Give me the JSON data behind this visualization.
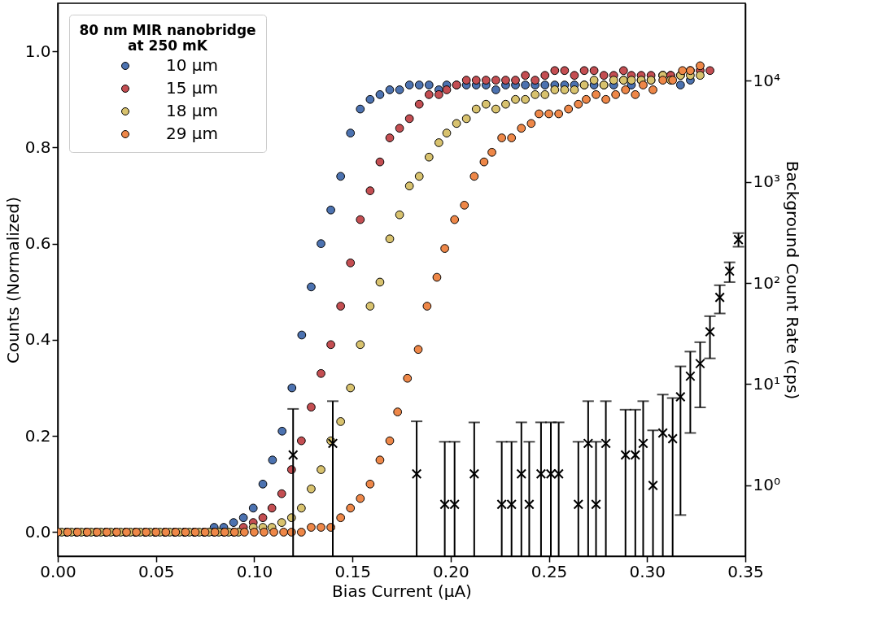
{
  "chart_data": {
    "type": "scatter",
    "xlabel": "Bias Current (μA)",
    "ylabel": "Counts (Normalized)",
    "y2label": "Background Count Rate (cps)",
    "legend_title": "80 nm MIR nanobridge\nat 250 mK",
    "legend": "top left",
    "marker": "circle",
    "grid": false,
    "log": "y2",
    "xlim": [
      0,
      0.35
    ],
    "xticks": [
      {
        "value": 0,
        "label": "0.00"
      },
      0.05,
      {
        "value": 0.1,
        "label": "0.10"
      },
      0.15,
      {
        "value": 0.2,
        "label": "0.20"
      },
      0.25,
      {
        "value": 0.3,
        "label": "0.30"
      },
      0.35
    ],
    "ylim": [
      -0.05,
      1.1
    ],
    "yticks": [
      {
        "value": 0,
        "label": "0.0"
      },
      0.2,
      0.4,
      0.6,
      0.8,
      {
        "value": 1,
        "label": "1.0"
      }
    ],
    "y2lim": [
      0.2,
      58000
    ],
    "y2ticks": [
      {
        "value": 1,
        "label": "10⁰"
      },
      {
        "value": 10,
        "label": "10¹"
      },
      {
        "value": 100,
        "label": "10²"
      },
      {
        "value": 1000,
        "label": "10³"
      },
      {
        "value": 10000,
        "label": "10⁴"
      }
    ],
    "series": [
      {
        "name": "10 μm",
        "color": "#4c72b0",
        "x": [
          0.0045,
          0.0095,
          0.0145,
          0.0195,
          0.0245,
          0.0295,
          0.0345,
          0.0395,
          0.0445,
          0.0495,
          0.0545,
          0.0595,
          0.0645,
          0.0695,
          0.0745,
          0.0796,
          0.0845,
          0.0895,
          0.0945,
          0.0995,
          0.1044,
          0.1093,
          0.1142,
          0.1192,
          0.1242,
          0.129,
          0.134,
          0.139,
          0.144,
          0.149,
          0.154,
          0.159,
          0.164,
          0.169,
          0.174,
          0.179,
          0.184,
          0.189,
          0.194,
          0.198,
          0.203,
          0.208,
          0.213,
          0.218,
          0.223,
          0.228,
          0.233,
          0.238,
          0.243,
          0.248,
          0.253,
          0.258,
          0.263,
          0.268,
          0.273,
          0.278,
          0.283,
          0.288,
          0.292,
          0.297,
          0.302,
          0.308,
          0.312,
          0.317,
          0.322
        ],
        "values": [
          0,
          0,
          0,
          0,
          0,
          0,
          0,
          0,
          0,
          0,
          0,
          0,
          0,
          0,
          0,
          0.01,
          0.01,
          0.02,
          0.03,
          0.05,
          0.1,
          0.15,
          0.21,
          0.3,
          0.41,
          0.51,
          0.6,
          0.67,
          0.74,
          0.83,
          0.88,
          0.9,
          0.91,
          0.92,
          0.92,
          0.93,
          0.93,
          0.93,
          0.92,
          0.93,
          0.93,
          0.93,
          0.93,
          0.93,
          0.92,
          0.93,
          0.93,
          0.93,
          0.93,
          0.93,
          0.93,
          0.93,
          0.93,
          0.93,
          0.93,
          0.93,
          0.93,
          0.94,
          0.93,
          0.94,
          0.94,
          0.95,
          0.95,
          0.93,
          0.94
        ]
      },
      {
        "name": "15 μm",
        "color": "#c44e52",
        "x": [
          0.0045,
          0.0095,
          0.0145,
          0.0195,
          0.0245,
          0.0295,
          0.0345,
          0.0395,
          0.0445,
          0.0495,
          0.0545,
          0.0595,
          0.0645,
          0.0695,
          0.0745,
          0.0795,
          0.0845,
          0.0895,
          0.0945,
          0.0995,
          0.1044,
          0.109,
          0.114,
          0.119,
          0.124,
          0.129,
          0.134,
          0.139,
          0.144,
          0.149,
          0.154,
          0.159,
          0.164,
          0.169,
          0.174,
          0.179,
          0.184,
          0.189,
          0.194,
          0.198,
          0.203,
          0.208,
          0.213,
          0.218,
          0.223,
          0.228,
          0.233,
          0.238,
          0.243,
          0.248,
          0.253,
          0.258,
          0.263,
          0.268,
          0.273,
          0.278,
          0.283,
          0.288,
          0.292,
          0.297,
          0.302,
          0.308,
          0.312,
          0.317,
          0.322,
          0.327,
          0.332
        ],
        "values": [
          0,
          0,
          0,
          0,
          0,
          0,
          0,
          0,
          0,
          0,
          0,
          0,
          0,
          0,
          0,
          0,
          0,
          0,
          0.01,
          0.02,
          0.03,
          0.05,
          0.08,
          0.13,
          0.19,
          0.26,
          0.33,
          0.39,
          0.47,
          0.56,
          0.65,
          0.71,
          0.77,
          0.82,
          0.84,
          0.86,
          0.89,
          0.91,
          0.91,
          0.92,
          0.93,
          0.94,
          0.94,
          0.94,
          0.94,
          0.94,
          0.94,
          0.95,
          0.94,
          0.95,
          0.96,
          0.96,
          0.95,
          0.96,
          0.96,
          0.95,
          0.95,
          0.96,
          0.95,
          0.95,
          0.95,
          0.95,
          0.95,
          0.95,
          0.96,
          0.96,
          0.96
        ]
      },
      {
        "name": "18 μm",
        "color": "#d8c26e",
        "x": [
          0.002,
          0.007,
          0.012,
          0.017,
          0.022,
          0.027,
          0.032,
          0.037,
          0.042,
          0.047,
          0.052,
          0.057,
          0.062,
          0.067,
          0.072,
          0.077,
          0.082,
          0.087,
          0.092,
          0.0995,
          0.1044,
          0.109,
          0.114,
          0.119,
          0.124,
          0.129,
          0.134,
          0.139,
          0.144,
          0.149,
          0.154,
          0.159,
          0.164,
          0.169,
          0.174,
          0.179,
          0.184,
          0.189,
          0.194,
          0.198,
          0.203,
          0.208,
          0.213,
          0.218,
          0.223,
          0.228,
          0.233,
          0.238,
          0.243,
          0.248,
          0.253,
          0.258,
          0.263,
          0.268,
          0.273,
          0.278,
          0.283,
          0.288,
          0.292,
          0.297,
          0.302,
          0.308,
          0.312,
          0.317,
          0.322,
          0.327
        ],
        "values": [
          0,
          0,
          0,
          0,
          0,
          0,
          0,
          0,
          0,
          0,
          0,
          0,
          0,
          0,
          0,
          0,
          0,
          0,
          0,
          0.01,
          0.01,
          0.01,
          0.02,
          0.03,
          0.05,
          0.09,
          0.13,
          0.19,
          0.23,
          0.3,
          0.39,
          0.47,
          0.52,
          0.61,
          0.66,
          0.72,
          0.74,
          0.78,
          0.81,
          0.83,
          0.85,
          0.86,
          0.88,
          0.89,
          0.88,
          0.89,
          0.9,
          0.9,
          0.91,
          0.91,
          0.92,
          0.92,
          0.92,
          0.93,
          0.94,
          0.93,
          0.94,
          0.94,
          0.94,
          0.94,
          0.94,
          0.95,
          0.94,
          0.95,
          0.95,
          0.95
        ]
      },
      {
        "name": "29 μm",
        "color": "#ee8748",
        "x": [
          0,
          0.005,
          0.01,
          0.015,
          0.02,
          0.025,
          0.03,
          0.035,
          0.04,
          0.045,
          0.05,
          0.055,
          0.06,
          0.065,
          0.07,
          0.075,
          0.08,
          0.085,
          0.09,
          0.095,
          0.1,
          0.105,
          0.11,
          0.115,
          0.119,
          0.124,
          0.129,
          0.134,
          0.139,
          0.144,
          0.149,
          0.154,
          0.159,
          0.164,
          0.169,
          0.173,
          0.178,
          0.1835,
          0.188,
          0.193,
          0.197,
          0.202,
          0.207,
          0.212,
          0.217,
          0.221,
          0.226,
          0.231,
          0.236,
          0.241,
          0.245,
          0.25,
          0.255,
          0.26,
          0.265,
          0.269,
          0.274,
          0.279,
          0.284,
          0.289,
          0.294,
          0.298,
          0.303,
          0.308,
          0.313,
          0.318,
          0.322,
          0.327
        ],
        "values": [
          0,
          0,
          0,
          0,
          0,
          0,
          0,
          0,
          0,
          0,
          0,
          0,
          0,
          0,
          0,
          0,
          0,
          0,
          0,
          0,
          0,
          0,
          0,
          0,
          0,
          0,
          0.01,
          0.01,
          0.01,
          0.03,
          0.05,
          0.07,
          0.1,
          0.15,
          0.19,
          0.25,
          0.32,
          0.38,
          0.47,
          0.53,
          0.59,
          0.65,
          0.68,
          0.74,
          0.77,
          0.79,
          0.82,
          0.82,
          0.84,
          0.85,
          0.87,
          0.87,
          0.87,
          0.88,
          0.89,
          0.9,
          0.91,
          0.9,
          0.91,
          0.92,
          0.91,
          0.93,
          0.92,
          0.94,
          0.94,
          0.96,
          0.96,
          0.97
        ]
      },
      {
        "axis": "y2",
        "color": "#000000",
        "marker": "cross",
        "x": [
          0.1198,
          0.14,
          0.1827,
          0.197,
          0.202,
          0.212,
          0.226,
          0.231,
          0.236,
          0.24,
          0.246,
          0.251,
          0.255,
          0.265,
          0.27,
          0.274,
          0.279,
          0.289,
          0.294,
          0.298,
          0.303,
          0.308,
          0.313,
          0.317,
          0.322,
          0.327,
          0.332,
          0.337,
          0.342,
          0.3465
        ],
        "values": [
          2.0,
          2.6,
          1.3,
          0.65,
          0.65,
          1.3,
          0.65,
          0.65,
          1.3,
          0.65,
          1.3,
          1.3,
          1.3,
          0.65,
          2.6,
          0.65,
          2.6,
          2.0,
          2.0,
          2.6,
          1.0,
          3.3,
          2.9,
          7.5,
          12,
          16,
          33,
          72,
          131,
          268
        ],
        "errors": [
          [
            0.2,
            5.7
          ],
          [
            0.2,
            6.8
          ],
          [
            0.2,
            4.3
          ],
          [
            0.2,
            2.7
          ],
          [
            0.2,
            2.7
          ],
          [
            0.2,
            4.2
          ],
          [
            0.2,
            2.7
          ],
          [
            0.2,
            2.7
          ],
          [
            0.2,
            4.2
          ],
          [
            0.2,
            2.7
          ],
          [
            0.2,
            4.2
          ],
          [
            0.2,
            4.2
          ],
          [
            0.2,
            4.2
          ],
          [
            0.2,
            2.7
          ],
          [
            0.2,
            6.8
          ],
          [
            0.2,
            2.7
          ],
          [
            0.2,
            6.8
          ],
          [
            0.2,
            5.6
          ],
          [
            0.2,
            5.6
          ],
          [
            0.2,
            6.8
          ],
          [
            0.2,
            3.5
          ],
          [
            0.2,
            7.9
          ],
          [
            0.2,
            7.3
          ],
          [
            0.51,
            15
          ],
          [
            3.3,
            21
          ],
          [
            5.9,
            26
          ],
          [
            18,
            47
          ],
          [
            50,
            95
          ],
          [
            102,
            160
          ],
          [
            228,
            311
          ]
        ]
      }
    ]
  }
}
